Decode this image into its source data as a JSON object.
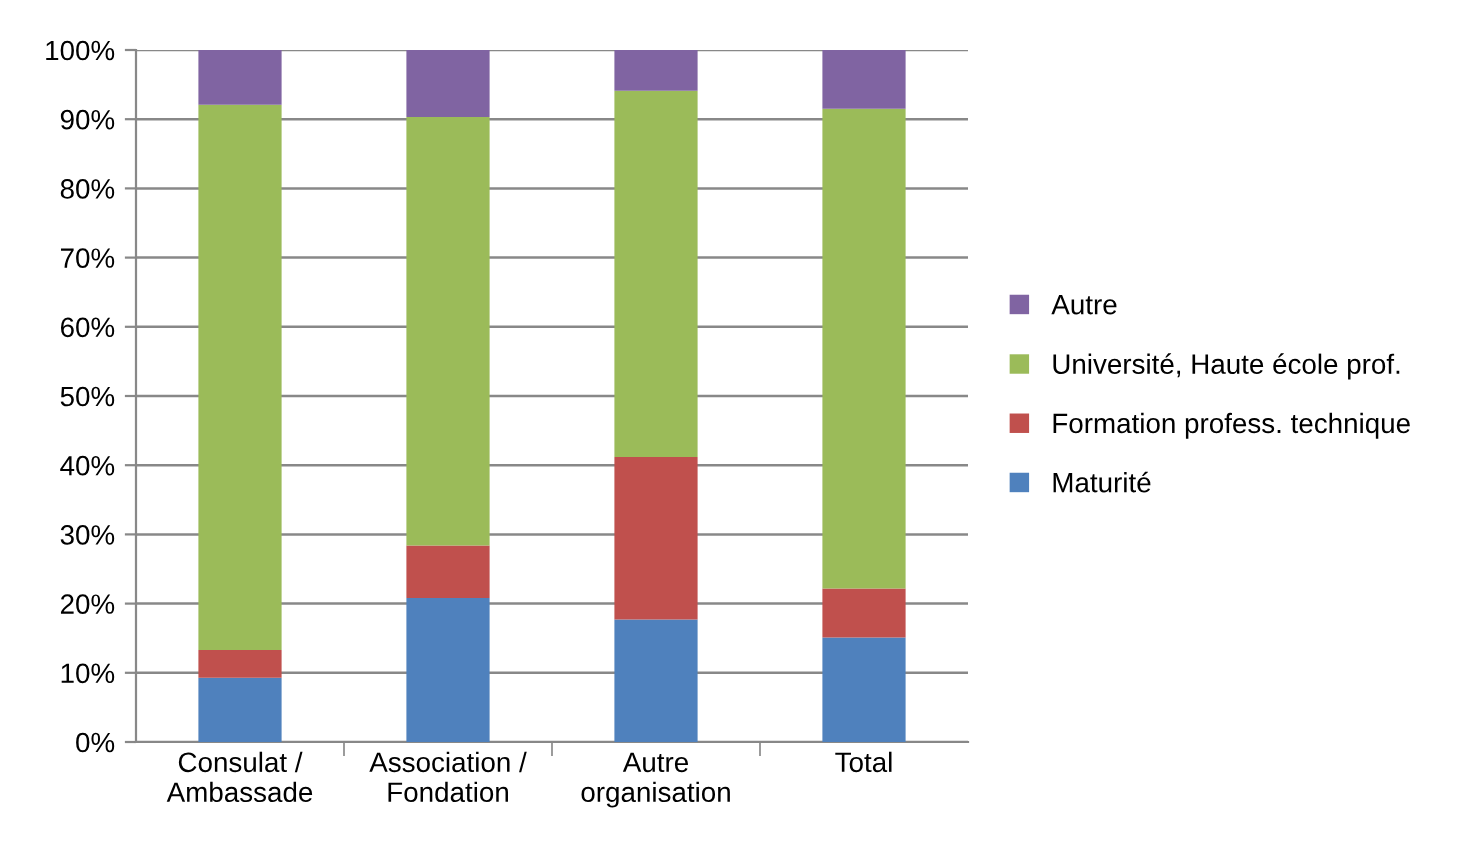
{
  "chart_data": {
    "type": "bar",
    "stacked": true,
    "categories": [
      "Consulat /\nAmbassade",
      "Association /\nFondation",
      "Autre\norganisation",
      "Total"
    ],
    "series": [
      {
        "name": "Maturité",
        "color": "#4f81bd",
        "values": [
          9.3,
          20.8,
          17.7,
          15.1
        ]
      },
      {
        "name": "Formation profess. technique",
        "color": "#c0504d",
        "values": [
          4.0,
          7.6,
          23.5,
          7.1
        ]
      },
      {
        "name": "Université, Haute école prof.",
        "color": "#9bbb59",
        "values": [
          78.8,
          61.9,
          52.9,
          69.3
        ]
      },
      {
        "name": "Autre",
        "color": "#8064a2",
        "values": [
          7.9,
          9.7,
          5.9,
          8.5
        ]
      }
    ],
    "ylim": [
      0,
      100
    ],
    "yticks": [
      {
        "value": 0,
        "label": "0%"
      },
      {
        "value": 10,
        "label": "10%"
      },
      {
        "value": 20,
        "label": "20%"
      },
      {
        "value": 30,
        "label": "30%"
      },
      {
        "value": 40,
        "label": "40%"
      },
      {
        "value": 50,
        "label": "50%"
      },
      {
        "value": 60,
        "label": "60%"
      },
      {
        "value": 70,
        "label": "70%"
      },
      {
        "value": 80,
        "label": "80%"
      },
      {
        "value": 90,
        "label": "90%"
      },
      {
        "value": 100,
        "label": "100%"
      }
    ],
    "grid": "y",
    "legend": "right"
  }
}
